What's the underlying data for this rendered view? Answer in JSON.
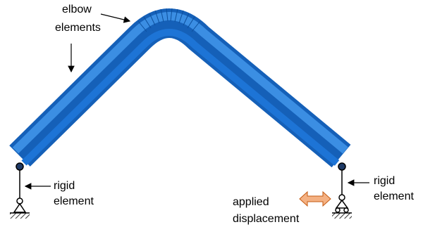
{
  "labels": {
    "elbow": [
      "elbow",
      "elements"
    ],
    "rigid_left": [
      "rigid",
      "element"
    ],
    "rigid_right": [
      "rigid",
      "element"
    ],
    "displacement": [
      "applied",
      "displacement"
    ]
  }
}
